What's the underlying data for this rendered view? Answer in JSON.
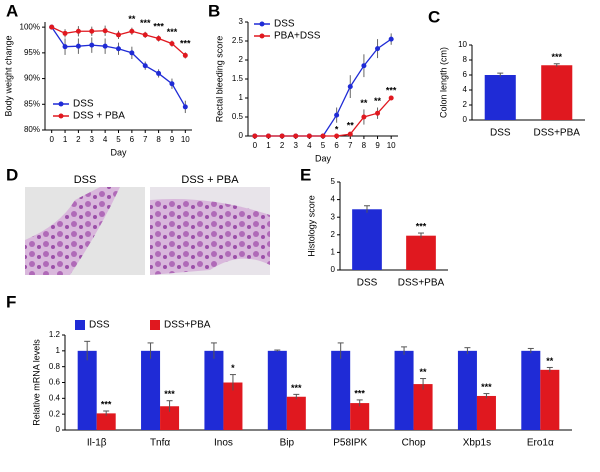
{
  "chart_data": [
    {
      "panel": "A",
      "type": "line",
      "xlabel": "Day",
      "ylabel": "Body weight change",
      "x": [
        0,
        1,
        2,
        3,
        4,
        5,
        6,
        7,
        8,
        9,
        10
      ],
      "xlim": [
        -0.5,
        10.5
      ],
      "xticks": [
        0,
        1,
        2,
        3,
        4,
        5,
        6,
        7,
        8,
        9,
        10
      ],
      "ylim": [
        80,
        101
      ],
      "yticks": [
        {
          "value": 80,
          "label": "80%"
        },
        {
          "value": 85,
          "label": "85%"
        },
        {
          "value": 90,
          "label": "90%"
        },
        {
          "value": 95,
          "label": "95%"
        },
        {
          "value": 100,
          "label": "100%"
        }
      ],
      "legend": "lower left",
      "series": [
        {
          "name": "DSS",
          "color": "#1f2bd6",
          "values": [
            100,
            96.2,
            96.3,
            96.5,
            96.3,
            95.8,
            95.0,
            92.5,
            91.0,
            89.0,
            84.5
          ],
          "errors": [
            0,
            1.6,
            1.5,
            1.5,
            1.5,
            1.2,
            1.2,
            0.8,
            0.8,
            1.0,
            1.2
          ],
          "significance": [
            null,
            null,
            null,
            null,
            null,
            null,
            null,
            null,
            null,
            null,
            null
          ]
        },
        {
          "name": "DSS + PBA",
          "color": "#e0181f",
          "values": [
            100,
            98.8,
            99.2,
            99.2,
            99.3,
            98.5,
            99.2,
            98.5,
            97.8,
            96.8,
            94.5
          ],
          "errors": [
            0,
            0.8,
            1.0,
            0.9,
            1.0,
            0.8,
            0.7,
            0.6,
            0.6,
            0.6,
            0.6
          ],
          "significance": [
            null,
            null,
            null,
            null,
            null,
            null,
            "**",
            "***",
            "***",
            "***",
            "***"
          ]
        }
      ]
    },
    {
      "panel": "B",
      "type": "line",
      "xlabel": "Day",
      "ylabel": "Rectal bleeding score",
      "x": [
        0,
        1,
        2,
        3,
        4,
        5,
        6,
        7,
        8,
        9,
        10
      ],
      "xlim": [
        -0.5,
        10.5
      ],
      "xticks": [
        0,
        1,
        2,
        3,
        4,
        5,
        6,
        7,
        8,
        9,
        10
      ],
      "ylim": [
        0,
        3
      ],
      "yticks": [
        0,
        0.5,
        1,
        1.5,
        2,
        2.5,
        3
      ],
      "legend": "upper left",
      "series": [
        {
          "name": "DSS",
          "color": "#1f2bd6",
          "values": [
            0,
            0,
            0,
            0,
            0,
            0,
            0.55,
            1.3,
            1.85,
            2.3,
            2.55
          ],
          "errors": [
            0,
            0,
            0,
            0,
            0,
            0,
            0.2,
            0.3,
            0.3,
            0.25,
            0.15
          ],
          "significance": [
            null,
            null,
            null,
            null,
            null,
            null,
            null,
            null,
            null,
            null,
            null
          ]
        },
        {
          "name": "PBA+DSS",
          "color": "#e0181f",
          "values": [
            0,
            0,
            0,
            0,
            0,
            0,
            0,
            0.05,
            0.5,
            0.6,
            1.0
          ],
          "errors": [
            0,
            0,
            0,
            0,
            0,
            0,
            0,
            0.05,
            0.2,
            0.15,
            0.02
          ],
          "significance": [
            null,
            null,
            null,
            null,
            null,
            null,
            "*",
            "**",
            "**",
            "**",
            "***"
          ]
        }
      ]
    },
    {
      "panel": "C",
      "type": "bar",
      "ylabel": "Colon length (cm)",
      "categories": [
        "DSS",
        "DSS+PBA"
      ],
      "values": [
        6.0,
        7.3
      ],
      "errors": [
        0.25,
        0.2
      ],
      "colors": [
        "#1f2bd6",
        "#e0181f"
      ],
      "significance": [
        null,
        "***"
      ],
      "ylim": [
        0,
        10
      ],
      "yticks": [
        0,
        2,
        4,
        6,
        8,
        10
      ]
    },
    {
      "panel": "E",
      "type": "bar",
      "ylabel": "Histology score",
      "categories": [
        "DSS",
        "DSS+PBA"
      ],
      "values": [
        3.45,
        1.95
      ],
      "errors": [
        0.2,
        0.15
      ],
      "colors": [
        "#1f2bd6",
        "#e0181f"
      ],
      "significance": [
        null,
        "***"
      ],
      "ylim": [
        0,
        5
      ],
      "yticks": [
        0,
        1,
        2,
        3,
        4,
        5
      ]
    },
    {
      "panel": "F",
      "type": "grouped-bar",
      "ylabel": "Relative mRNA levels",
      "categories": [
        "Il-1β",
        "Tnfα",
        "Inos",
        "Bip",
        "P58IPK",
        "Chop",
        "Xbp1s",
        "Ero1α"
      ],
      "ylim": [
        0,
        1.2
      ],
      "yticks": [
        0,
        0.2,
        0.4,
        0.6,
        0.8,
        1,
        1.2
      ],
      "legend": "upper left",
      "series": [
        {
          "name": "DSS",
          "color": "#1f2bd6",
          "values": [
            1,
            1,
            1,
            1,
            1,
            1,
            1,
            1
          ],
          "errors": [
            0.12,
            0.1,
            0.1,
            0.01,
            0.1,
            0.05,
            0.04,
            0.03
          ],
          "significance": [
            null,
            null,
            null,
            null,
            null,
            null,
            null,
            null
          ]
        },
        {
          "name": "DSS+PBA",
          "color": "#e0181f",
          "values": [
            0.21,
            0.3,
            0.6,
            0.42,
            0.34,
            0.58,
            0.43,
            0.76
          ],
          "errors": [
            0.03,
            0.07,
            0.1,
            0.03,
            0.04,
            0.07,
            0.03,
            0.03
          ],
          "significance": [
            "***",
            "***",
            "*",
            "***",
            "***",
            "**",
            "***",
            "**"
          ]
        }
      ]
    }
  ],
  "image_panel": {
    "panel": "D",
    "labels": [
      "DSS",
      "DSS + PBA"
    ]
  }
}
